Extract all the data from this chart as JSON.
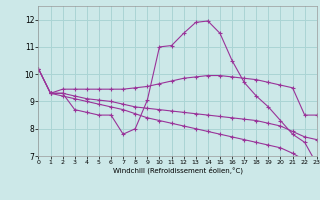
{
  "xlabel": "Windchill (Refroidissement éolien,°C)",
  "background_color": "#cce8e8",
  "grid_color": "#aad4d4",
  "line_color": "#993399",
  "xlim": [
    0,
    23
  ],
  "ylim": [
    7,
    12.5
  ],
  "yticks": [
    7,
    8,
    9,
    10,
    11,
    12
  ],
  "xticks": [
    0,
    1,
    2,
    3,
    4,
    5,
    6,
    7,
    8,
    9,
    10,
    11,
    12,
    13,
    14,
    15,
    16,
    17,
    18,
    19,
    20,
    21,
    22,
    23
  ],
  "line1_x": [
    0,
    1,
    2,
    3,
    4,
    5,
    6,
    7,
    8,
    9,
    10,
    11,
    12,
    13,
    14,
    15,
    16,
    17,
    18,
    19,
    20,
    21,
    22,
    23
  ],
  "line1_y": [
    10.2,
    9.3,
    9.45,
    9.45,
    9.45,
    9.45,
    9.45,
    9.45,
    9.5,
    9.55,
    9.65,
    9.75,
    9.85,
    9.9,
    9.95,
    9.95,
    9.9,
    9.85,
    9.8,
    9.7,
    9.6,
    9.5,
    8.5,
    8.5
  ],
  "line2_x": [
    0,
    1,
    2,
    3,
    4,
    5,
    6,
    7,
    8,
    9,
    10,
    11,
    12,
    13,
    14,
    15,
    16,
    17,
    18,
    19,
    20,
    21,
    22,
    23
  ],
  "line2_y": [
    10.2,
    9.3,
    9.3,
    9.2,
    9.1,
    9.05,
    9.0,
    8.9,
    8.8,
    8.75,
    8.7,
    8.65,
    8.6,
    8.55,
    8.5,
    8.45,
    8.4,
    8.35,
    8.3,
    8.2,
    8.1,
    7.9,
    7.7,
    7.6
  ],
  "line3_x": [
    1,
    2,
    3,
    4,
    5,
    6,
    7,
    8,
    9,
    10,
    11,
    12,
    13,
    14,
    15,
    16,
    17,
    18,
    19,
    20,
    21,
    22,
    23
  ],
  "line3_y": [
    9.3,
    9.3,
    8.7,
    8.6,
    8.5,
    8.5,
    7.8,
    8.0,
    9.05,
    11.0,
    11.05,
    11.5,
    11.9,
    11.95,
    11.5,
    10.5,
    9.7,
    9.2,
    8.8,
    8.3,
    7.8,
    7.5,
    6.7
  ],
  "line4_x": [
    0,
    1,
    2,
    3,
    4,
    5,
    6,
    7,
    8,
    9,
    10,
    11,
    12,
    13,
    14,
    15,
    16,
    17,
    18,
    19,
    20,
    21,
    22,
    23
  ],
  "line4_y": [
    10.2,
    9.3,
    9.2,
    9.1,
    9.0,
    8.9,
    8.8,
    8.7,
    8.55,
    8.4,
    8.3,
    8.2,
    8.1,
    8.0,
    7.9,
    7.8,
    7.7,
    7.6,
    7.5,
    7.4,
    7.3,
    7.1,
    6.85,
    6.7
  ]
}
